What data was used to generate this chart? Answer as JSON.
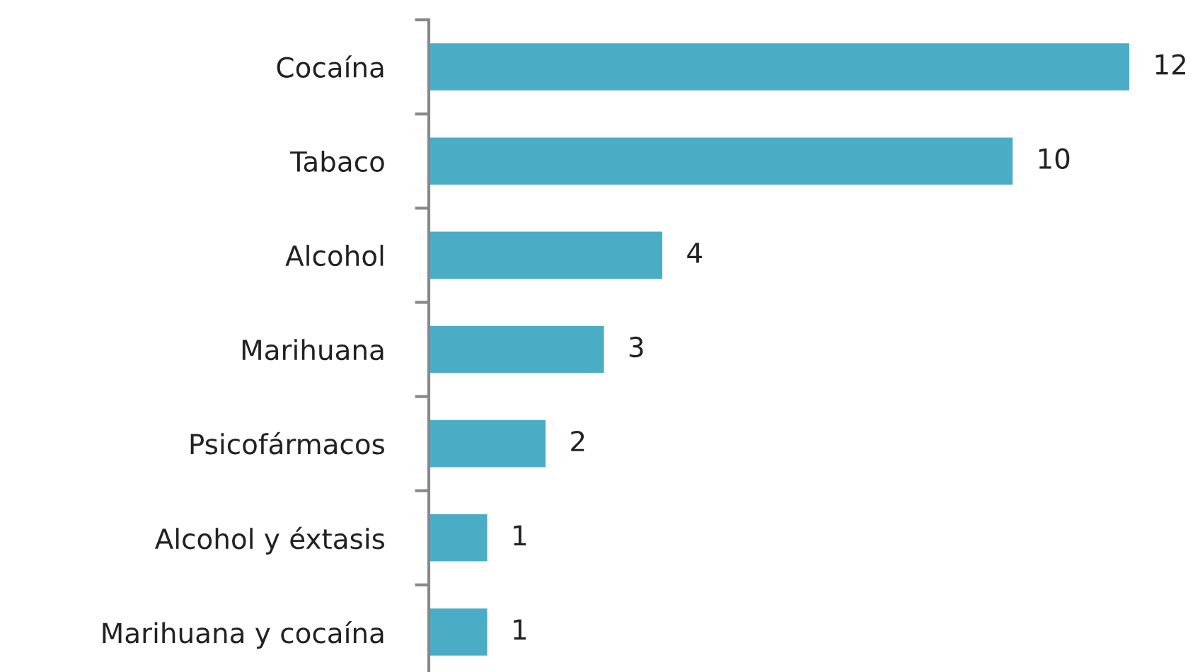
{
  "chart_data": {
    "type": "bar",
    "orientation": "horizontal",
    "categories": [
      "Cocaína",
      "Tabaco",
      "Alcohol",
      "Marihuana",
      "Psicofármacos",
      "Alcohol y éxtasis",
      "Marihuana y cocaína"
    ],
    "values": [
      12,
      10,
      4,
      3,
      2,
      1,
      1
    ],
    "color": "#4bacc6",
    "data_labels": true,
    "grid": false,
    "legend": false,
    "tick_labels": "y"
  }
}
